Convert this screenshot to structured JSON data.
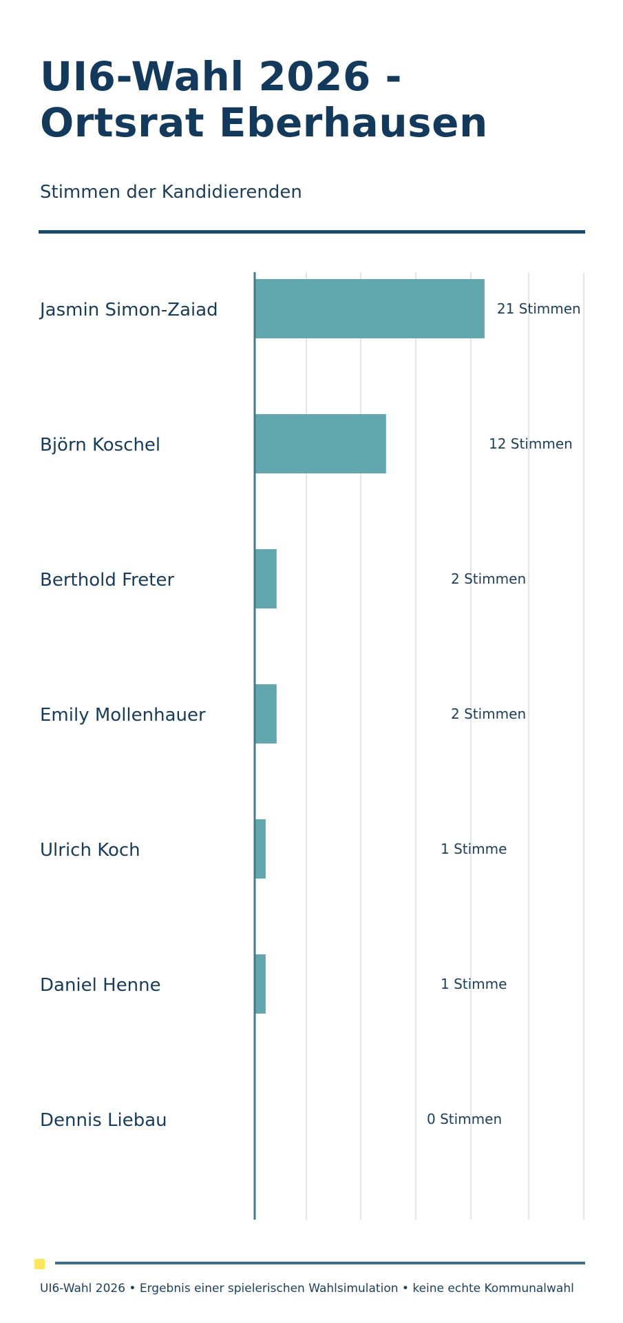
{
  "header": {
    "title_line1": "UI6-Wahl 2026 -",
    "title_line2": "Ortsrat Eberhausen",
    "subtitle": "Stimmen der Kandidierenden"
  },
  "footer": {
    "text": "UI6-Wahl 2026 • Ergebnis einer spielerischen Wahlsimulation • keine echte Kommunalwahl"
  },
  "colors": {
    "bar": "#63a7ae",
    "title": "#133a5c",
    "axis": "#3f7a8a",
    "accent_dot": "#ffe65a"
  },
  "chart_data": {
    "type": "bar",
    "orientation": "horizontal",
    "title": "",
    "xlabel": "",
    "ylabel": "",
    "categories": [
      "Jasmin Simon-Zaiad",
      "Björn Koschel",
      "Berthold Freter",
      "Emily Mollenhauer",
      "Ulrich Koch",
      "Daniel Henne",
      "Dennis Liebau"
    ],
    "values": [
      21,
      12,
      2,
      2,
      1,
      1,
      0
    ],
    "value_labels": [
      "21 Stimmen",
      "12 Stimmen",
      "2 Stimmen",
      "2 Stimmen",
      "1 Stimme",
      "1 Stimme",
      "0 Stimmen"
    ],
    "grid": true,
    "legend": "none"
  }
}
